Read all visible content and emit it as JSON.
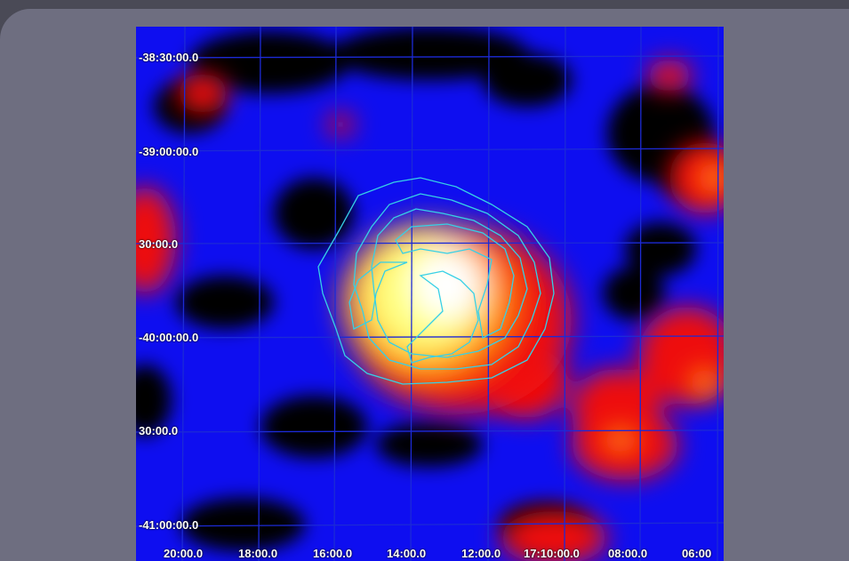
{
  "image": {
    "description_colors": {
      "background": "#000000",
      "low": "#1010ff",
      "mid": "#ff2010",
      "high": "#ffff80",
      "peak": "#ffffff",
      "grid": "#1c2ad6",
      "contour": "#36d0e6"
    }
  },
  "axes": {
    "dec_labels": [
      "-38:30:00.0",
      "-39:00:00.0",
      "30:00.0",
      "-40:00:00.0",
      "30:00.0",
      "-41:00:00.0"
    ],
    "ra_labels": [
      "20:00.0",
      "18:00.0",
      "16:00.0",
      "14:00.0",
      "12:00.0",
      "17:10:00.0",
      "08:00.0",
      "06:00"
    ]
  }
}
